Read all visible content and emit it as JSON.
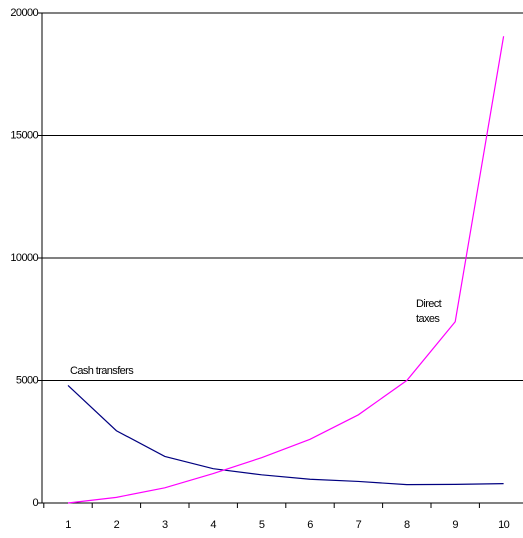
{
  "chart_data": {
    "type": "line",
    "categories": [
      "1",
      "2",
      "3",
      "4",
      "5",
      "6",
      "7",
      "8",
      "9",
      "10"
    ],
    "series": [
      {
        "name": "Cash transfers",
        "color": "#000080",
        "values": [
          4800,
          2950,
          1900,
          1400,
          1150,
          970,
          880,
          750,
          760,
          790
        ]
      },
      {
        "name": "Direct taxes",
        "color": "#ff00ff",
        "values": [
          0,
          230,
          620,
          1200,
          1850,
          2600,
          3600,
          5000,
          7400,
          19050
        ]
      }
    ],
    "ylim": [
      0,
      20000
    ],
    "yticks": [
      0,
      5000,
      10000,
      15000,
      20000
    ],
    "grid": true
  }
}
